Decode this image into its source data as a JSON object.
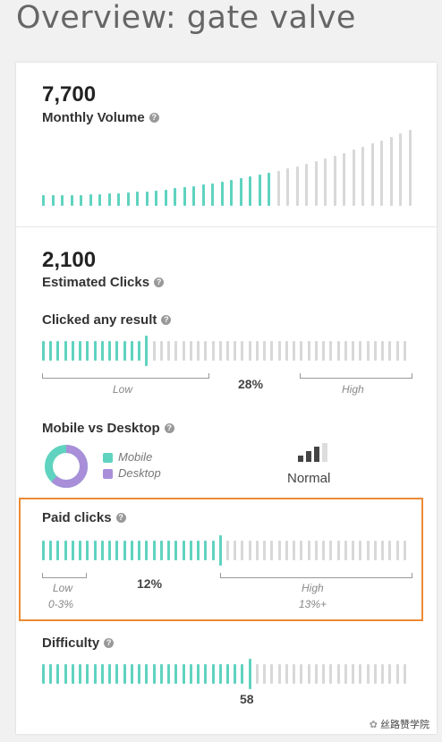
{
  "page_title": "Overview: gate valve",
  "colors": {
    "teal": "#5fd3bf",
    "grey": "#d8d8d8",
    "purple": "#a98fd9",
    "highlight": "#ec8a35"
  },
  "monthly_volume": {
    "value": "7,700",
    "label": "Monthly Volume"
  },
  "estimated_clicks": {
    "value": "2,100",
    "label": "Estimated Clicks"
  },
  "clicked_any_result": {
    "label": "Clicked any result",
    "value": "28%",
    "low_label": "Low",
    "high_label": "High",
    "level": 0.28
  },
  "mobile_vs_desktop": {
    "label": "Mobile vs Desktop",
    "legend_mobile": "Mobile",
    "legend_desktop": "Desktop",
    "device_status": "Normal",
    "desktop_share": 0.62
  },
  "paid_clicks": {
    "label": "Paid clicks",
    "value": "12%",
    "low_label": "Low",
    "low_range": "0-3%",
    "high_label": "High",
    "high_range": "13%+",
    "level": 0.49
  },
  "difficulty": {
    "label": "Difficulty",
    "value": "58",
    "level": 0.58
  },
  "watermark": "丝路赞学院",
  "help_icon": "?"
}
